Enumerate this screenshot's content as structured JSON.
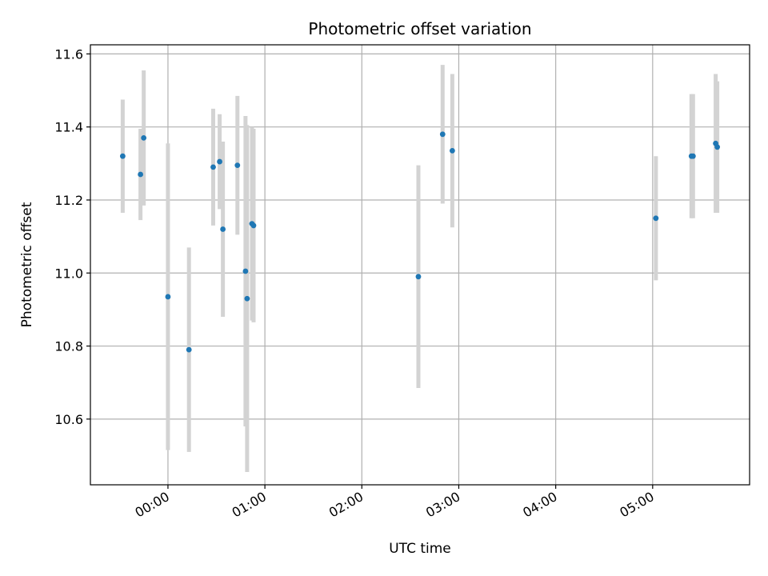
{
  "chart_data": {
    "type": "scatter",
    "title": "Photometric offset variation",
    "xlabel": "UTC time",
    "ylabel": "Photometric offset",
    "x_axis": {
      "kind": "time",
      "ticks": [
        "00:00",
        "01:00",
        "02:00",
        "03:00",
        "04:00",
        "05:00"
      ],
      "range": [
        "-00:48",
        "06:00"
      ]
    },
    "y_axis": {
      "ticks": [
        "10.6",
        "10.8",
        "11.0",
        "11.2",
        "11.4",
        "11.6"
      ],
      "range": [
        10.42,
        11.625
      ]
    },
    "grid": true,
    "points": [
      {
        "t": "-00:28",
        "y": 11.32,
        "err": 0.155
      },
      {
        "t": "-00:17",
        "y": 11.27,
        "err": 0.125
      },
      {
        "t": "-00:15",
        "y": 11.37,
        "err": 0.185
      },
      {
        "t": "-00:00",
        "y": 10.935,
        "err": 0.42
      },
      {
        "t": "00:13",
        "y": 10.79,
        "err": 0.28
      },
      {
        "t": "00:28",
        "y": 11.29,
        "err": 0.16
      },
      {
        "t": "00:32",
        "y": 11.305,
        "err": 0.13
      },
      {
        "t": "00:34",
        "y": 11.12,
        "err": 0.24
      },
      {
        "t": "00:43",
        "y": 11.295,
        "err": 0.19
      },
      {
        "t": "00:48",
        "y": 11.005,
        "err": 0.425
      },
      {
        "t": "00:49",
        "y": 10.93,
        "err": 0.475
      },
      {
        "t": "00:52",
        "y": 11.135,
        "err": 0.265
      },
      {
        "t": "00:53",
        "y": 11.13,
        "err": 0.265
      },
      {
        "t": "02:35",
        "y": 10.99,
        "err": 0.305
      },
      {
        "t": "02:50",
        "y": 11.38,
        "err": 0.19
      },
      {
        "t": "02:56",
        "y": 11.335,
        "err": 0.21
      },
      {
        "t": "05:02",
        "y": 11.15,
        "err": 0.17
      },
      {
        "t": "05:24",
        "y": 11.32,
        "err": 0.17
      },
      {
        "t": "05:25",
        "y": 11.32,
        "err": 0.17
      },
      {
        "t": "05:39",
        "y": 11.355,
        "err": 0.19
      },
      {
        "t": "05:40",
        "y": 11.345,
        "err": 0.18
      }
    ],
    "colors": {
      "points": "#1f77b4",
      "errorbars": "#d3d3d3",
      "grid": "#b0b0b0"
    }
  }
}
